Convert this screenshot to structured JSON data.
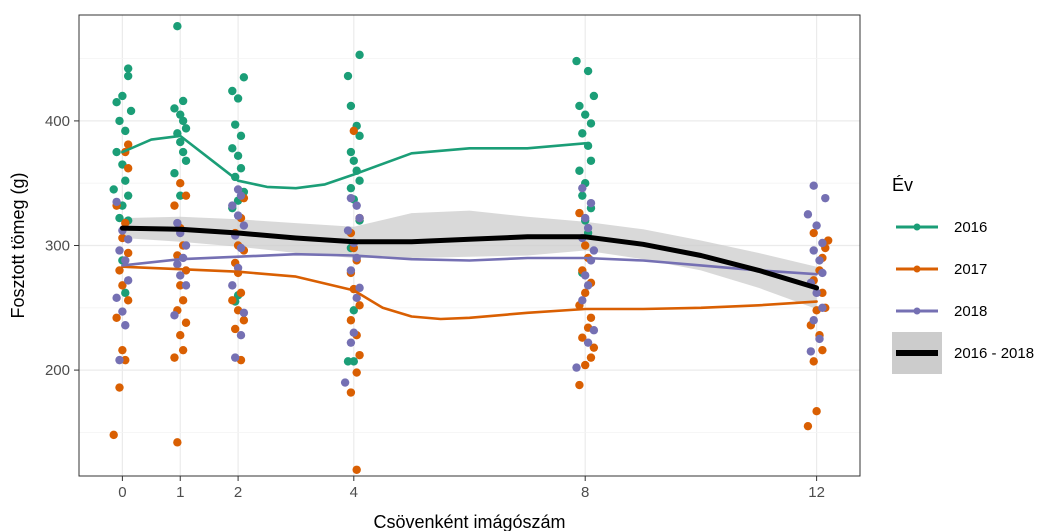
{
  "chart_data": {
    "type": "scatter",
    "xlabel": "Csövenként imágószám",
    "ylabel": "Fosztott tömeg (g)",
    "xlim": [
      -0.75,
      12.75
    ],
    "ylim": [
      115,
      485
    ],
    "x_ticks": [
      0,
      1,
      2,
      4,
      8,
      12
    ],
    "y_ticks": [
      200,
      300,
      400
    ],
    "grid": true,
    "legend": {
      "title": "Év",
      "placement": "right",
      "entries": [
        {
          "label": "2016",
          "color": "#1b9e77",
          "style": "line"
        },
        {
          "label": "2017",
          "color": "#d95f02",
          "style": "line"
        },
        {
          "label": "2018",
          "color": "#7570b3",
          "style": "line"
        },
        {
          "label": "2016 - 2018",
          "color": "#000000",
          "style": "band"
        }
      ]
    },
    "points": [
      {
        "name": "2016",
        "color": "#1b9e77",
        "values": [
          [
            -0.1,
            415
          ],
          [
            0.0,
            420
          ],
          [
            0.1,
            442
          ],
          [
            0.1,
            436
          ],
          [
            0.15,
            408
          ],
          [
            -0.05,
            400
          ],
          [
            0.05,
            392
          ],
          [
            -0.1,
            375
          ],
          [
            0.0,
            365
          ],
          [
            0.05,
            352
          ],
          [
            -0.15,
            345
          ],
          [
            0.1,
            340
          ],
          [
            0.0,
            332
          ],
          [
            -0.05,
            322
          ],
          [
            0.1,
            320
          ],
          [
            0.0,
            288
          ],
          [
            0.05,
            262
          ],
          [
            0.95,
            476
          ],
          [
            1.05,
            416
          ],
          [
            0.9,
            410
          ],
          [
            1.0,
            405
          ],
          [
            1.05,
            400
          ],
          [
            1.1,
            394
          ],
          [
            0.95,
            390
          ],
          [
            1.0,
            383
          ],
          [
            1.05,
            375
          ],
          [
            1.1,
            368
          ],
          [
            0.9,
            358
          ],
          [
            1.0,
            340
          ],
          [
            1.9,
            424
          ],
          [
            2.1,
            435
          ],
          [
            2.0,
            418
          ],
          [
            1.95,
            397
          ],
          [
            2.05,
            388
          ],
          [
            1.9,
            378
          ],
          [
            2.0,
            372
          ],
          [
            2.05,
            362
          ],
          [
            1.95,
            355
          ],
          [
            2.1,
            343
          ],
          [
            2.0,
            336
          ],
          [
            1.9,
            330
          ],
          [
            2.0,
            260
          ],
          [
            1.95,
            255
          ],
          [
            3.9,
            436
          ],
          [
            4.1,
            453
          ],
          [
            3.95,
            412
          ],
          [
            4.05,
            396
          ],
          [
            4.1,
            388
          ],
          [
            3.95,
            375
          ],
          [
            4.0,
            368
          ],
          [
            4.05,
            360
          ],
          [
            4.1,
            352
          ],
          [
            3.95,
            346
          ],
          [
            4.0,
            337
          ],
          [
            4.1,
            320
          ],
          [
            3.95,
            298
          ],
          [
            4.0,
            248
          ],
          [
            3.9,
            207
          ],
          [
            4.0,
            207
          ],
          [
            7.85,
            448
          ],
          [
            8.05,
            440
          ],
          [
            8.15,
            420
          ],
          [
            7.9,
            412
          ],
          [
            8.0,
            405
          ],
          [
            8.1,
            398
          ],
          [
            7.95,
            390
          ],
          [
            8.05,
            380
          ],
          [
            8.1,
            368
          ],
          [
            7.9,
            360
          ],
          [
            8.0,
            350
          ],
          [
            7.95,
            340
          ],
          [
            8.1,
            330
          ],
          [
            8.0,
            320
          ],
          [
            8.05,
            310
          ],
          [
            7.95,
            278
          ]
        ]
      },
      {
        "name": "2017",
        "color": "#d95f02",
        "values": [
          [
            -0.15,
            148
          ],
          [
            -0.05,
            186
          ],
          [
            0.05,
            208
          ],
          [
            0.0,
            216
          ],
          [
            -0.1,
            242
          ],
          [
            0.1,
            256
          ],
          [
            0.0,
            268
          ],
          [
            -0.05,
            280
          ],
          [
            0.1,
            294
          ],
          [
            0.0,
            306
          ],
          [
            0.05,
            318
          ],
          [
            -0.1,
            332
          ],
          [
            0.1,
            362
          ],
          [
            0.05,
            375
          ],
          [
            0.1,
            381
          ],
          [
            0.95,
            142
          ],
          [
            0.9,
            210
          ],
          [
            1.05,
            216
          ],
          [
            1.0,
            228
          ],
          [
            1.1,
            238
          ],
          [
            0.95,
            248
          ],
          [
            1.05,
            256
          ],
          [
            1.0,
            268
          ],
          [
            1.1,
            280
          ],
          [
            0.95,
            292
          ],
          [
            1.05,
            300
          ],
          [
            1.0,
            314
          ],
          [
            0.9,
            332
          ],
          [
            1.1,
            340
          ],
          [
            1.0,
            350
          ],
          [
            2.05,
            208
          ],
          [
            1.95,
            233
          ],
          [
            2.1,
            240
          ],
          [
            2.0,
            248
          ],
          [
            1.9,
            256
          ],
          [
            2.05,
            262
          ],
          [
            2.0,
            278
          ],
          [
            1.95,
            286
          ],
          [
            2.1,
            296
          ],
          [
            2.0,
            300
          ],
          [
            1.95,
            310
          ],
          [
            2.05,
            322
          ],
          [
            2.1,
            338
          ],
          [
            4.05,
            120
          ],
          [
            3.95,
            182
          ],
          [
            4.05,
            198
          ],
          [
            4.1,
            212
          ],
          [
            4.05,
            228
          ],
          [
            3.95,
            240
          ],
          [
            4.1,
            252
          ],
          [
            4.0,
            265
          ],
          [
            3.95,
            278
          ],
          [
            4.05,
            288
          ],
          [
            4.0,
            298
          ],
          [
            3.95,
            310
          ],
          [
            4.1,
            322
          ],
          [
            4.0,
            392
          ],
          [
            7.9,
            188
          ],
          [
            8.0,
            204
          ],
          [
            8.1,
            210
          ],
          [
            8.15,
            218
          ],
          [
            7.95,
            226
          ],
          [
            8.05,
            234
          ],
          [
            8.1,
            242
          ],
          [
            7.9,
            252
          ],
          [
            8.0,
            262
          ],
          [
            8.1,
            270
          ],
          [
            7.95,
            280
          ],
          [
            8.05,
            290
          ],
          [
            8.0,
            300
          ],
          [
            7.9,
            326
          ],
          [
            11.85,
            155
          ],
          [
            12.0,
            167
          ],
          [
            11.95,
            207
          ],
          [
            12.1,
            216
          ],
          [
            12.05,
            228
          ],
          [
            11.9,
            236
          ],
          [
            12.0,
            248
          ],
          [
            12.15,
            250
          ],
          [
            12.1,
            262
          ],
          [
            11.95,
            272
          ],
          [
            12.05,
            280
          ],
          [
            12.1,
            290
          ],
          [
            12.15,
            298
          ],
          [
            12.2,
            304
          ],
          [
            11.95,
            310
          ]
        ]
      },
      {
        "name": "2018",
        "color": "#7570b3",
        "values": [
          [
            -0.05,
            208
          ],
          [
            0.05,
            236
          ],
          [
            0.0,
            247
          ],
          [
            -0.1,
            258
          ],
          [
            0.1,
            272
          ],
          [
            0.05,
            288
          ],
          [
            -0.05,
            296
          ],
          [
            0.1,
            305
          ],
          [
            0.0,
            312
          ],
          [
            -0.1,
            335
          ],
          [
            0.9,
            244
          ],
          [
            1.1,
            268
          ],
          [
            1.0,
            276
          ],
          [
            0.95,
            285
          ],
          [
            1.05,
            290
          ],
          [
            1.1,
            300
          ],
          [
            1.0,
            310
          ],
          [
            0.95,
            318
          ],
          [
            1.95,
            210
          ],
          [
            2.05,
            228
          ],
          [
            2.1,
            246
          ],
          [
            1.9,
            268
          ],
          [
            2.0,
            282
          ],
          [
            2.05,
            298
          ],
          [
            1.95,
            308
          ],
          [
            2.1,
            316
          ],
          [
            2.0,
            324
          ],
          [
            1.9,
            332
          ],
          [
            2.05,
            340
          ],
          [
            2.0,
            345
          ],
          [
            3.85,
            190
          ],
          [
            3.95,
            222
          ],
          [
            4.0,
            230
          ],
          [
            4.05,
            258
          ],
          [
            4.1,
            266
          ],
          [
            3.95,
            280
          ],
          [
            4.05,
            290
          ],
          [
            4.0,
            302
          ],
          [
            3.9,
            312
          ],
          [
            4.1,
            322
          ],
          [
            4.05,
            332
          ],
          [
            3.95,
            338
          ],
          [
            7.85,
            202
          ],
          [
            8.05,
            222
          ],
          [
            8.15,
            232
          ],
          [
            7.95,
            256
          ],
          [
            8.05,
            268
          ],
          [
            8.0,
            276
          ],
          [
            8.1,
            288
          ],
          [
            8.15,
            296
          ],
          [
            7.95,
            306
          ],
          [
            8.05,
            314
          ],
          [
            8.0,
            322
          ],
          [
            8.1,
            334
          ],
          [
            7.95,
            346
          ],
          [
            11.95,
            348
          ],
          [
            12.15,
            338
          ],
          [
            11.85,
            325
          ],
          [
            12.0,
            316
          ],
          [
            12.1,
            302
          ],
          [
            11.95,
            296
          ],
          [
            12.05,
            288
          ],
          [
            12.1,
            278
          ],
          [
            11.9,
            270
          ],
          [
            12.0,
            262
          ],
          [
            12.1,
            250
          ],
          [
            11.95,
            240
          ],
          [
            12.05,
            225
          ],
          [
            11.9,
            215
          ]
        ]
      }
    ],
    "smooth": [
      {
        "name": "2016",
        "color": "#1b9e77",
        "values": [
          [
            0,
            375
          ],
          [
            0.5,
            385
          ],
          [
            1,
            388
          ],
          [
            1.5,
            370
          ],
          [
            2,
            352
          ],
          [
            2.5,
            347
          ],
          [
            3,
            346
          ],
          [
            3.5,
            349
          ],
          [
            4,
            357
          ],
          [
            5,
            374
          ],
          [
            6,
            378
          ],
          [
            7,
            378
          ],
          [
            8,
            382
          ]
        ]
      },
      {
        "name": "2017",
        "color": "#d95f02",
        "values": [
          [
            0,
            283
          ],
          [
            1,
            281
          ],
          [
            2,
            279
          ],
          [
            3,
            275
          ],
          [
            4,
            264
          ],
          [
            4.5,
            250
          ],
          [
            5,
            243
          ],
          [
            5.5,
            241
          ],
          [
            6,
            242
          ],
          [
            7,
            246
          ],
          [
            8,
            249
          ],
          [
            9,
            249
          ],
          [
            10,
            250
          ],
          [
            11,
            252
          ],
          [
            12,
            255
          ]
        ]
      },
      {
        "name": "2018",
        "color": "#7570b3",
        "values": [
          [
            0,
            284
          ],
          [
            1,
            289
          ],
          [
            2,
            291
          ],
          [
            3,
            293
          ],
          [
            4,
            292
          ],
          [
            5,
            289
          ],
          [
            6,
            288
          ],
          [
            7,
            290
          ],
          [
            8,
            290
          ],
          [
            9,
            288
          ],
          [
            10,
            284
          ],
          [
            11,
            280
          ],
          [
            12,
            277
          ]
        ]
      },
      {
        "name": "2016 - 2018",
        "color": "#000000",
        "values": [
          [
            0,
            314
          ],
          [
            1,
            313
          ],
          [
            2,
            310
          ],
          [
            3,
            306
          ],
          [
            4,
            303
          ],
          [
            5,
            303
          ],
          [
            6,
            305
          ],
          [
            7,
            307
          ],
          [
            8,
            307
          ],
          [
            9,
            301
          ],
          [
            10,
            292
          ],
          [
            11,
            280
          ],
          [
            12,
            266
          ]
        ],
        "band_upper": [
          [
            0,
            322
          ],
          [
            1,
            323
          ],
          [
            2,
            321
          ],
          [
            3,
            318
          ],
          [
            4,
            315
          ],
          [
            5,
            326
          ],
          [
            6,
            328
          ],
          [
            7,
            323
          ],
          [
            8,
            319
          ],
          [
            9,
            313
          ],
          [
            10,
            304
          ],
          [
            11,
            294
          ],
          [
            12,
            283
          ]
        ],
        "band_lower": [
          [
            0,
            306
          ],
          [
            1,
            303
          ],
          [
            2,
            299
          ],
          [
            3,
            294
          ],
          [
            4,
            290
          ],
          [
            5,
            290
          ],
          [
            6,
            291
          ],
          [
            7,
            292
          ],
          [
            8,
            296
          ],
          [
            9,
            289
          ],
          [
            10,
            280
          ],
          [
            11,
            266
          ],
          [
            12,
            249
          ]
        ]
      }
    ]
  }
}
